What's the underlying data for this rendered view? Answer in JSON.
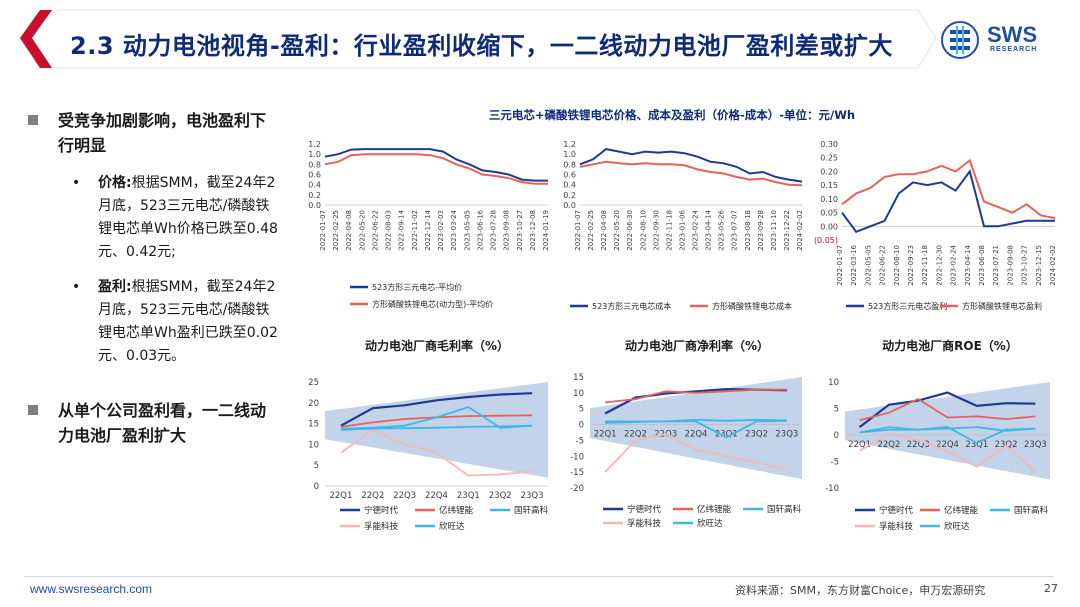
{
  "header": {
    "title": "2.3 动力电池视角-盈利：行业盈利收缩下，一二线动力电池厂盈利差或扩大",
    "logo_text": "SWS",
    "logo_sub": "RESEARCH"
  },
  "left_panel": {
    "bullet1": "受竞争加剧影响，电池盈利下行明显",
    "sub1_label": "价格:",
    "sub1_text": "根据SMM，截至24年2月底，523三元电芯/磷酸铁锂电芯单Wh价格已跌至0.48元、0.42元;",
    "sub2_label": "盈利:",
    "sub2_text": "根据SMM，截至24年2月底，523三元电芯/磷酸铁锂电芯单Wh盈利已跌至0.02元、0.03元。",
    "bullet2": "从单个公司盈利看，一二线动力电池厂盈利扩大"
  },
  "footer": {
    "url": "www.swsresearch.com",
    "source": "资料来源：SMM，东方财富Choice，申万宏源研究",
    "page": "27"
  },
  "colors": {
    "title": "#0e2a78",
    "navy": "#1f3a93",
    "red": "#e8625a",
    "cyan": "#43b6e8",
    "pink": "#f4b8b4",
    "band": "#b7cbe6",
    "header_red": "#c8102e"
  },
  "top_title": "三元电芯+磷酸铁锂电芯价格、成本及盈利（价格-成本）-单位：元/Wh",
  "chart_data": [
    {
      "type": "line",
      "title": "",
      "x": [
        "2022-01-07",
        "2022-02-25",
        "2022-04-08",
        "2022-05-20",
        "2022-06-22",
        "2022-08-03",
        "2022-09-14",
        "2022-11-02",
        "2022-12-14",
        "2023-02-03",
        "2023-03-24",
        "2023-05-05",
        "2023-06-16",
        "2023-07-28",
        "2023-09-08",
        "2023-10-27",
        "2023-12-08",
        "2024-01-19"
      ],
      "ylim": [
        0,
        1.2
      ],
      "yticks": [
        "0.0",
        "0.2",
        "0.4",
        "0.6",
        "0.8",
        "1.0",
        "1.2"
      ],
      "series": [
        {
          "name": "523方形三元电芯-平均价",
          "color": "#1f3a93",
          "values": [
            0.95,
            1.0,
            1.09,
            1.1,
            1.1,
            1.1,
            1.1,
            1.1,
            1.1,
            1.05,
            0.9,
            0.8,
            0.68,
            0.65,
            0.6,
            0.5,
            0.48,
            0.48
          ]
        },
        {
          "name": "方形磷酸铁锂电芯(动力型)-平均价",
          "color": "#e8625a",
          "values": [
            0.8,
            0.85,
            0.98,
            1.0,
            1.0,
            1.0,
            1.0,
            1.0,
            0.98,
            0.92,
            0.8,
            0.72,
            0.6,
            0.57,
            0.53,
            0.45,
            0.42,
            0.42
          ]
        }
      ]
    },
    {
      "type": "line",
      "title": "",
      "x": [
        "2022-01-07",
        "2022-02-25",
        "2022-04-08",
        "2022-05-20",
        "2022-06-30",
        "2022-08-10",
        "2022-09-30",
        "2022-11-18",
        "2023-01-06",
        "2023-02-24",
        "2023-04-14",
        "2023-05-26",
        "2023-07-07",
        "2023-08-18",
        "2023-09-28",
        "2023-11-10",
        "2023-12-22",
        "2024-02-02"
      ],
      "ylim": [
        0,
        1.2
      ],
      "yticks": [
        "0.0",
        "0.2",
        "0.4",
        "0.6",
        "0.8",
        "1.0",
        "1.2"
      ],
      "series": [
        {
          "name": "523方形三元电芯成本",
          "color": "#1f3a93",
          "values": [
            0.8,
            0.9,
            1.1,
            1.05,
            1.0,
            1.05,
            1.03,
            1.05,
            1.02,
            0.95,
            0.85,
            0.82,
            0.75,
            0.62,
            0.65,
            0.55,
            0.5,
            0.46
          ]
        },
        {
          "name": "方形磷酸铁锂电芯成本",
          "color": "#e8625a",
          "values": [
            0.75,
            0.8,
            0.85,
            0.82,
            0.8,
            0.82,
            0.8,
            0.8,
            0.78,
            0.7,
            0.65,
            0.62,
            0.55,
            0.5,
            0.52,
            0.45,
            0.4,
            0.39
          ]
        }
      ]
    },
    {
      "type": "line",
      "title": "",
      "x": [
        "2022-01-07",
        "2022-03-16",
        "2022-05-05",
        "2022-06-22",
        "2022-08-10",
        "2022-09-23",
        "2022-11-18",
        "2022-12-30",
        "2023-02-24",
        "2023-04-14",
        "2023-06-08",
        "2023-07-21",
        "2023-09-08",
        "2023-10-27",
        "2023-12-15",
        "2024-02-02"
      ],
      "ylim": [
        -0.05,
        0.3
      ],
      "yticks": [
        "(0.05)",
        "0.00",
        "0.05",
        "0.10",
        "0.15",
        "0.20",
        "0.25",
        "0.30"
      ],
      "series": [
        {
          "name": "523方形三元电芯盈利",
          "color": "#1f3a93",
          "values": [
            0.05,
            -0.02,
            0.0,
            0.02,
            0.12,
            0.16,
            0.15,
            0.16,
            0.13,
            0.2,
            0.0,
            0.0,
            0.01,
            0.02,
            0.02,
            0.02
          ]
        },
        {
          "name": "方形磷酸铁锂电芯盈利",
          "color": "#e8625a",
          "values": [
            0.08,
            0.12,
            0.14,
            0.18,
            0.19,
            0.19,
            0.2,
            0.22,
            0.2,
            0.24,
            0.09,
            0.07,
            0.05,
            0.08,
            0.04,
            0.03
          ]
        }
      ]
    },
    {
      "type": "line",
      "title": "动力电池厂商毛利率（%）",
      "x": [
        "22Q1",
        "22Q2",
        "22Q3",
        "22Q4",
        "23Q1",
        "23Q2",
        "23Q3"
      ],
      "ylim": [
        0,
        25
      ],
      "yticks": [
        "0",
        "5",
        "10",
        "15",
        "20",
        "25"
      ],
      "series": [
        {
          "name": "宁德时代",
          "color": "#1f3a93",
          "values": [
            14.5,
            18.7,
            19.4,
            20.6,
            21.4,
            22.0,
            22.3
          ]
        },
        {
          "name": "亿纬锂能",
          "color": "#e8625a",
          "values": [
            14.2,
            15.3,
            16.1,
            16.5,
            16.8,
            16.9,
            17.0
          ]
        },
        {
          "name": "国轩高科",
          "color": "#43b6e8",
          "values": [
            13.8,
            14.0,
            14.5,
            16.5,
            19.0,
            14.0,
            14.5
          ]
        },
        {
          "name": "孚能科技",
          "color": "#f4b8b4",
          "values": [
            8.0,
            13.5,
            10.0,
            8.0,
            2.5,
            2.8,
            3.5
          ]
        },
        {
          "name": "欣旺达",
          "color": "#43b6e8",
          "values": [
            13.5,
            13.8,
            13.9,
            14.0,
            14.2,
            14.3,
            14.5
          ]
        }
      ]
    },
    {
      "type": "line",
      "title": "动力电池厂商净利率（%）",
      "x": [
        "22Q1",
        "22Q2",
        "22Q3",
        "22Q4",
        "23Q1",
        "23Q2",
        "23Q3"
      ],
      "ylim": [
        -20,
        15
      ],
      "yticks": [
        "-20",
        "-15",
        "-10",
        "-5",
        "0",
        "5",
        "10",
        "15"
      ],
      "series": [
        {
          "name": "宁德时代",
          "color": "#1f3a93",
          "values": [
            3.5,
            8.5,
            9.8,
            10.5,
            11.2,
            11.0,
            10.8
          ]
        },
        {
          "name": "亿纬锂能",
          "color": "#e8625a",
          "values": [
            7.0,
            8.0,
            10.5,
            10.0,
            10.5,
            11.0,
            11.0
          ]
        },
        {
          "name": "国轩高科",
          "color": "#43b6e8",
          "values": [
            1.0,
            1.0,
            1.0,
            1.5,
            1.2,
            1.5,
            1.3
          ]
        },
        {
          "name": "孚能科技",
          "color": "#f4b8b4",
          "values": [
            -15.0,
            -5.0,
            -3.0,
            -8.0,
            -10.0,
            -12.0,
            -14.0
          ]
        },
        {
          "name": "欣旺达",
          "color": "#43b6e8",
          "values": [
            0.5,
            0.8,
            1.0,
            1.0,
            -4.0,
            1.0,
            1.2
          ]
        }
      ]
    },
    {
      "type": "line",
      "title": "动力电池厂商ROE（%）",
      "x": [
        "22Q1",
        "22Q2",
        "22Q3",
        "22Q4",
        "23Q1",
        "23Q2",
        "23Q3"
      ],
      "ylim": [
        -10,
        10
      ],
      "yticks": [
        "-10",
        "-5",
        "0",
        "5",
        "10"
      ],
      "series": [
        {
          "name": "宁德时代",
          "color": "#1f3a93",
          "values": [
            1.5,
            5.7,
            6.5,
            8.0,
            5.5,
            6.0,
            5.9
          ]
        },
        {
          "name": "亿纬锂能",
          "color": "#e8625a",
          "values": [
            2.8,
            4.2,
            6.8,
            3.3,
            3.5,
            3.0,
            3.5
          ]
        },
        {
          "name": "国轩高科",
          "color": "#43b6e8",
          "values": [
            0.5,
            1.5,
            1.0,
            1.2,
            1.5,
            0.8,
            1.2
          ]
        },
        {
          "name": "孚能科技",
          "color": "#f4b8b4",
          "values": [
            -3.0,
            0.3,
            -1.0,
            -3.0,
            -6.0,
            -2.0,
            -7.0
          ]
        },
        {
          "name": "欣旺达",
          "color": "#43b6e8",
          "values": [
            0.5,
            1.0,
            1.0,
            1.5,
            -1.5,
            1.0,
            1.2
          ]
        }
      ]
    }
  ]
}
